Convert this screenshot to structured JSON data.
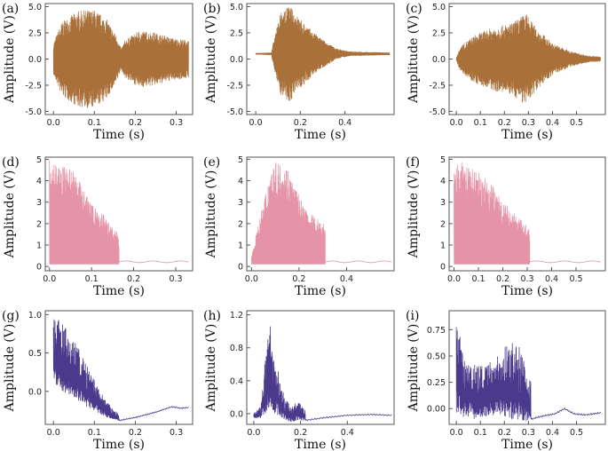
{
  "chart_data": [
    {
      "id": "a",
      "panel_label": "(a)",
      "type": "line",
      "style": "waveform",
      "signal": "bipolar",
      "color": "#A9703A",
      "xlabel": "Time (s)",
      "ylabel": "Amplitude (V)",
      "xlim": [
        -0.02,
        0.34
      ],
      "ylim": [
        -5.3,
        5.3
      ],
      "xticks": [
        0.0,
        0.1,
        0.2,
        0.3
      ],
      "xtick_labels": [
        "0.0",
        "0.1",
        "0.2",
        "0.3"
      ],
      "yticks": [
        -5.0,
        -2.5,
        0.0,
        2.5,
        5.0
      ],
      "ytick_labels": [
        "-5.0",
        "-2.5",
        "0.0",
        "2.5",
        "5.0"
      ],
      "duration": 0.33,
      "envelope": [
        [
          0,
          1.5
        ],
        [
          0.02,
          3.5
        ],
        [
          0.06,
          4.6
        ],
        [
          0.1,
          4.7
        ],
        [
          0.13,
          3.8
        ],
        [
          0.155,
          2.2
        ],
        [
          0.165,
          1.0
        ],
        [
          0.175,
          1.8
        ],
        [
          0.21,
          2.7
        ],
        [
          0.25,
          2.5
        ],
        [
          0.29,
          2.0
        ],
        [
          0.33,
          1.8
        ]
      ]
    },
    {
      "id": "b",
      "panel_label": "(b)",
      "type": "line",
      "style": "waveform",
      "signal": "bipolar",
      "color": "#A9703A",
      "xlabel": "Time (s)",
      "ylabel": "Amplitude (V)",
      "xlim": [
        -0.04,
        0.62
      ],
      "ylim": [
        -5.3,
        5.3
      ],
      "xticks": [
        0.0,
        0.2,
        0.4
      ],
      "xtick_labels": [
        "0.0",
        "0.2",
        "0.4"
      ],
      "yticks": [
        -5.0,
        -2.5,
        0.0,
        2.5,
        5.0
      ],
      "ytick_labels": [
        "-5.0",
        "-2.5",
        "0.0",
        "2.5",
        "5.0"
      ],
      "duration": 0.6,
      "offset": 0.5,
      "envelope": [
        [
          0,
          0.05
        ],
        [
          0.07,
          0.1
        ],
        [
          0.08,
          1.2
        ],
        [
          0.11,
          3.8
        ],
        [
          0.15,
          4.6
        ],
        [
          0.2,
          3.3
        ],
        [
          0.26,
          2.0
        ],
        [
          0.31,
          1.2
        ],
        [
          0.36,
          0.5
        ],
        [
          0.42,
          0.2
        ],
        [
          0.6,
          0.1
        ]
      ]
    },
    {
      "id": "c",
      "panel_label": "(c)",
      "type": "line",
      "style": "waveform",
      "signal": "bipolar",
      "color": "#A9703A",
      "xlabel": "Time (s)",
      "ylabel": "Amplitude (V)",
      "xlim": [
        -0.03,
        0.62
      ],
      "ylim": [
        -5.3,
        5.3
      ],
      "xticks": [
        0.0,
        0.1,
        0.2,
        0.3,
        0.4,
        0.5
      ],
      "xtick_labels": [
        "0.0",
        "0.1",
        "0.2",
        "0.3",
        "0.4",
        "0.5"
      ],
      "yticks": [
        -5.0,
        -2.5,
        0.0,
        2.5,
        5.0
      ],
      "ytick_labels": [
        "-5.0",
        "-2.5",
        "0.0",
        "2.5",
        "5.0"
      ],
      "duration": 0.6,
      "envelope": [
        [
          0,
          0.2
        ],
        [
          0.02,
          1.3
        ],
        [
          0.08,
          2.3
        ],
        [
          0.15,
          3.0
        ],
        [
          0.23,
          3.4
        ],
        [
          0.29,
          4.4
        ],
        [
          0.33,
          3.0
        ],
        [
          0.4,
          1.5
        ],
        [
          0.48,
          0.7
        ],
        [
          0.55,
          0.3
        ],
        [
          0.6,
          0.2
        ]
      ]
    },
    {
      "id": "d",
      "panel_label": "(d)",
      "type": "line",
      "style": "waveform",
      "signal": "rectified",
      "color": "#E593A6",
      "xlabel": "Time (s)",
      "ylabel": "Amplitude (V)",
      "xlim": [
        -0.01,
        0.34
      ],
      "ylim": [
        -0.2,
        5.1
      ],
      "xticks": [
        0.0,
        0.1,
        0.2,
        0.3
      ],
      "xtick_labels": [
        "0.0",
        "0.1",
        "0.2",
        "0.3"
      ],
      "yticks": [
        0,
        1,
        2,
        3,
        4,
        5
      ],
      "ytick_labels": [
        "0",
        "1",
        "2",
        "3",
        "4",
        "5"
      ],
      "duration": 0.33,
      "active_end": 0.165,
      "baseline": 0.12,
      "tail_level": 0.2,
      "envelope": [
        [
          0,
          5.0
        ],
        [
          0.02,
          4.8
        ],
        [
          0.04,
          4.6
        ],
        [
          0.06,
          4.4
        ],
        [
          0.08,
          3.6
        ],
        [
          0.1,
          2.9
        ],
        [
          0.13,
          2.4
        ],
        [
          0.15,
          1.8
        ],
        [
          0.165,
          1.5
        ]
      ]
    },
    {
      "id": "e",
      "panel_label": "(e)",
      "type": "line",
      "style": "waveform",
      "signal": "rectified",
      "color": "#E593A6",
      "xlabel": "Time (s)",
      "ylabel": "Amplitude (V)",
      "xlim": [
        -0.02,
        0.6
      ],
      "ylim": [
        -0.2,
        5.1
      ],
      "xticks": [
        0.0,
        0.2,
        0.4
      ],
      "xtick_labels": [
        "0.0",
        "0.2",
        "0.4"
      ],
      "yticks": [
        0,
        1,
        2,
        3,
        4,
        5
      ],
      "ytick_labels": [
        "0",
        "1",
        "2",
        "3",
        "4",
        "5"
      ],
      "duration": 0.59,
      "active_end": 0.31,
      "baseline": 0.12,
      "tail_level": 0.2,
      "envelope": [
        [
          0,
          0.5
        ],
        [
          0.04,
          2.5
        ],
        [
          0.08,
          4.6
        ],
        [
          0.11,
          4.9
        ],
        [
          0.15,
          4.7
        ],
        [
          0.18,
          3.8
        ],
        [
          0.23,
          2.6
        ],
        [
          0.27,
          2.3
        ],
        [
          0.31,
          2.0
        ]
      ]
    },
    {
      "id": "f",
      "panel_label": "(f)",
      "type": "line",
      "style": "waveform",
      "signal": "rectified",
      "color": "#E593A6",
      "xlabel": "Time (s)",
      "ylabel": "Amplitude (V)",
      "xlim": [
        -0.02,
        0.62
      ],
      "ylim": [
        -0.2,
        5.1
      ],
      "xticks": [
        0.0,
        0.1,
        0.2,
        0.3,
        0.4,
        0.5
      ],
      "xtick_labels": [
        "0.0",
        "0.1",
        "0.2",
        "0.3",
        "0.4",
        "0.5"
      ],
      "yticks": [
        0,
        1,
        2,
        3,
        4,
        5
      ],
      "ytick_labels": [
        "0",
        "1",
        "2",
        "3",
        "4",
        "5"
      ],
      "duration": 0.6,
      "active_end": 0.31,
      "baseline": 0.12,
      "tail_level": 0.2,
      "envelope": [
        [
          0,
          4.3
        ],
        [
          0.02,
          4.9
        ],
        [
          0.06,
          4.7
        ],
        [
          0.1,
          4.4
        ],
        [
          0.15,
          3.9
        ],
        [
          0.2,
          3.1
        ],
        [
          0.25,
          2.4
        ],
        [
          0.29,
          2.0
        ],
        [
          0.31,
          1.8
        ]
      ]
    },
    {
      "id": "g",
      "panel_label": "(g)",
      "type": "line",
      "style": "waveform",
      "signal": "decay",
      "color": "#4B3A8C",
      "xlabel": "Time (s)",
      "ylabel": "Amplitude (V)",
      "xlim": [
        -0.02,
        0.34
      ],
      "ylim": [
        -0.43,
        1.05
      ],
      "xticks": [
        0.0,
        0.1,
        0.2,
        0.3
      ],
      "xtick_labels": [
        "0.0",
        "0.1",
        "0.2",
        "0.3"
      ],
      "yticks": [
        0.0,
        0.5,
        1.0
      ],
      "ytick_labels": [
        "0.0",
        "0.5",
        "1.0"
      ],
      "duration": 0.33,
      "active_end": 0.16,
      "top_env": [
        [
          0,
          1.0
        ],
        [
          0.02,
          0.9
        ],
        [
          0.04,
          0.75
        ],
        [
          0.06,
          0.6
        ],
        [
          0.08,
          0.35
        ],
        [
          0.1,
          0.15
        ],
        [
          0.12,
          -0.05
        ],
        [
          0.14,
          -0.2
        ],
        [
          0.16,
          -0.3
        ]
      ],
      "bottom_env": [
        [
          0,
          0.1
        ],
        [
          0.02,
          0.0
        ],
        [
          0.04,
          -0.05
        ],
        [
          0.06,
          -0.12
        ],
        [
          0.08,
          -0.2
        ],
        [
          0.1,
          -0.25
        ],
        [
          0.12,
          -0.32
        ],
        [
          0.14,
          -0.36
        ],
        [
          0.16,
          -0.38
        ]
      ],
      "tail": [
        [
          0.16,
          -0.38
        ],
        [
          0.2,
          -0.34
        ],
        [
          0.25,
          -0.27
        ],
        [
          0.29,
          -0.2
        ],
        [
          0.31,
          -0.22
        ],
        [
          0.33,
          -0.21
        ]
      ]
    },
    {
      "id": "h",
      "panel_label": "(h)",
      "type": "line",
      "style": "waveform",
      "signal": "decay",
      "color": "#4B3A8C",
      "xlabel": "Time (s)",
      "ylabel": "Amplitude (V)",
      "xlim": [
        -0.03,
        0.6
      ],
      "ylim": [
        -0.13,
        1.25
      ],
      "xticks": [
        0.0,
        0.2,
        0.4
      ],
      "xtick_labels": [
        "0.0",
        "0.2",
        "0.4"
      ],
      "yticks": [
        0.0,
        0.4,
        0.8,
        1.2
      ],
      "ytick_labels": [
        "0.0",
        "0.4",
        "0.8",
        "1.2"
      ],
      "duration": 0.59,
      "active_end": 0.22,
      "top_env": [
        [
          0,
          0.0
        ],
        [
          0.03,
          0.1
        ],
        [
          0.05,
          0.7
        ],
        [
          0.07,
          1.15
        ],
        [
          0.09,
          0.55
        ],
        [
          0.11,
          0.55
        ],
        [
          0.13,
          0.2
        ],
        [
          0.16,
          0.1
        ],
        [
          0.19,
          0.15
        ],
        [
          0.22,
          0.05
        ]
      ],
      "bottom_env": [
        [
          0,
          -0.05
        ],
        [
          0.03,
          -0.05
        ],
        [
          0.05,
          0.0
        ],
        [
          0.07,
          0.1
        ],
        [
          0.09,
          0.0
        ],
        [
          0.11,
          -0.02
        ],
        [
          0.13,
          -0.08
        ],
        [
          0.16,
          -0.1
        ],
        [
          0.19,
          -0.08
        ],
        [
          0.22,
          -0.08
        ]
      ],
      "tail": [
        [
          0.22,
          -0.08
        ],
        [
          0.3,
          -0.05
        ],
        [
          0.4,
          -0.02
        ],
        [
          0.5,
          -0.01
        ],
        [
          0.59,
          -0.02
        ]
      ]
    },
    {
      "id": "i",
      "panel_label": "(i)",
      "type": "line",
      "style": "waveform",
      "signal": "decay",
      "color": "#4B3A8C",
      "xlabel": "Time (s)",
      "ylabel": "Amplitude (V)",
      "xlim": [
        -0.03,
        0.62
      ],
      "ylim": [
        -0.15,
        0.93
      ],
      "xticks": [
        0.0,
        0.1,
        0.2,
        0.3,
        0.4,
        0.5
      ],
      "xtick_labels": [
        "0.0",
        "0.1",
        "0.2",
        "0.3",
        "0.4",
        "0.5"
      ],
      "yticks": [
        0.0,
        0.25,
        0.5,
        0.75
      ],
      "ytick_labels": [
        "0.00",
        "0.25",
        "0.50",
        "0.75"
      ],
      "duration": 0.6,
      "active_end": 0.31,
      "top_env": [
        [
          0,
          0.9
        ],
        [
          0.03,
          0.55
        ],
        [
          0.07,
          0.45
        ],
        [
          0.12,
          0.4
        ],
        [
          0.17,
          0.5
        ],
        [
          0.22,
          0.65
        ],
        [
          0.26,
          0.6
        ],
        [
          0.29,
          0.4
        ],
        [
          0.31,
          0.3
        ]
      ],
      "bottom_env": [
        [
          0,
          -0.05
        ],
        [
          0.03,
          -0.08
        ],
        [
          0.07,
          -0.1
        ],
        [
          0.12,
          -0.08
        ],
        [
          0.17,
          -0.05
        ],
        [
          0.22,
          -0.1
        ],
        [
          0.26,
          -0.12
        ],
        [
          0.29,
          -0.12
        ],
        [
          0.31,
          -0.1
        ]
      ],
      "tail": [
        [
          0.31,
          -0.1
        ],
        [
          0.36,
          -0.07
        ],
        [
          0.41,
          -0.05
        ],
        [
          0.45,
          -0.0
        ],
        [
          0.49,
          -0.05
        ],
        [
          0.54,
          -0.06
        ],
        [
          0.6,
          -0.04
        ]
      ]
    }
  ]
}
